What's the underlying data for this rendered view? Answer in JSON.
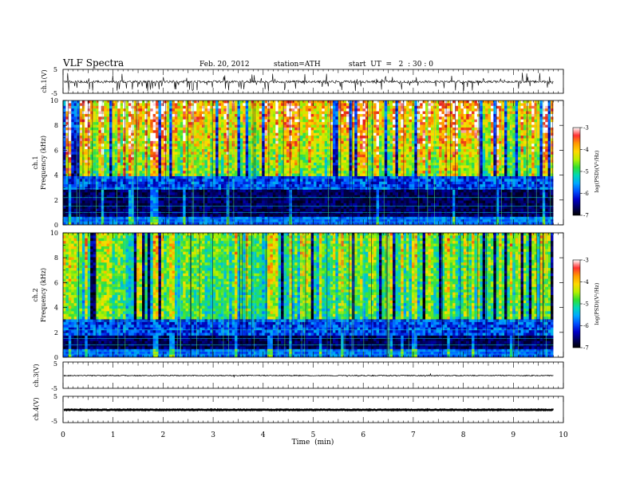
{
  "header": {
    "title": "VLF  Spectra",
    "date": "Feb. 20, 2012",
    "station": "station=ATH",
    "start": "start  UT  =   2  : 30 : 0"
  },
  "colorbar": {
    "label": "log(PSD)(V²/Hz)",
    "ticks": [
      "-3",
      "-4",
      "-5",
      "-6",
      "-7"
    ],
    "colors": [
      "#ffffff",
      "#ff3030",
      "#ff9b00",
      "#ffd800",
      "#b8f000",
      "#30e030",
      "#00d8b8",
      "#00a8ff",
      "#0050ff",
      "#0000c8",
      "#000060",
      "#000000"
    ]
  },
  "chart_data": [
    {
      "type": "line",
      "name": "ch.1",
      "ylabel": "ch.1(V)",
      "ylim": [
        -5,
        5
      ],
      "yticks": [
        "5",
        "-5"
      ],
      "baseline": 0,
      "description_values": "noisy waveform near 0 V with spikes toward -5 V"
    },
    {
      "type": "heatmap",
      "name": "ch.1",
      "ylabel_top": "ch.1",
      "ylabel": "Frequency  (kHz)",
      "ylim": [
        0,
        10
      ],
      "yticks": [
        "0",
        "2",
        "4",
        "6",
        "8",
        "10"
      ],
      "bands_khz": {
        "quiet_below": 4,
        "active_above": 4
      }
    },
    {
      "type": "heatmap",
      "name": "ch.2",
      "ylabel_top": "ch.2",
      "ylabel": "Frequency  (kHz)",
      "ylim": [
        0,
        10
      ],
      "yticks": [
        "0",
        "2",
        "4",
        "6",
        "8",
        "10"
      ],
      "bands_khz": {
        "quiet_below": 3,
        "active_above": 3
      }
    },
    {
      "type": "line",
      "name": "ch.3",
      "ylabel": "ch.3(V)",
      "ylim": [
        -5,
        5
      ],
      "yticks": [
        "5",
        "-5"
      ],
      "baseline": 0
    },
    {
      "type": "line",
      "name": "ch.4",
      "ylabel": "ch.4(V)",
      "ylim": [
        -5,
        5
      ],
      "yticks": [
        "5",
        "-5"
      ],
      "baseline": 0
    }
  ],
  "xaxis": {
    "label": "Time  (min)",
    "xlim": [
      0,
      10
    ],
    "ticks": [
      "0",
      "1",
      "2",
      "3",
      "4",
      "5",
      "6",
      "7",
      "8",
      "9",
      "10"
    ],
    "data_end": 9.8
  }
}
